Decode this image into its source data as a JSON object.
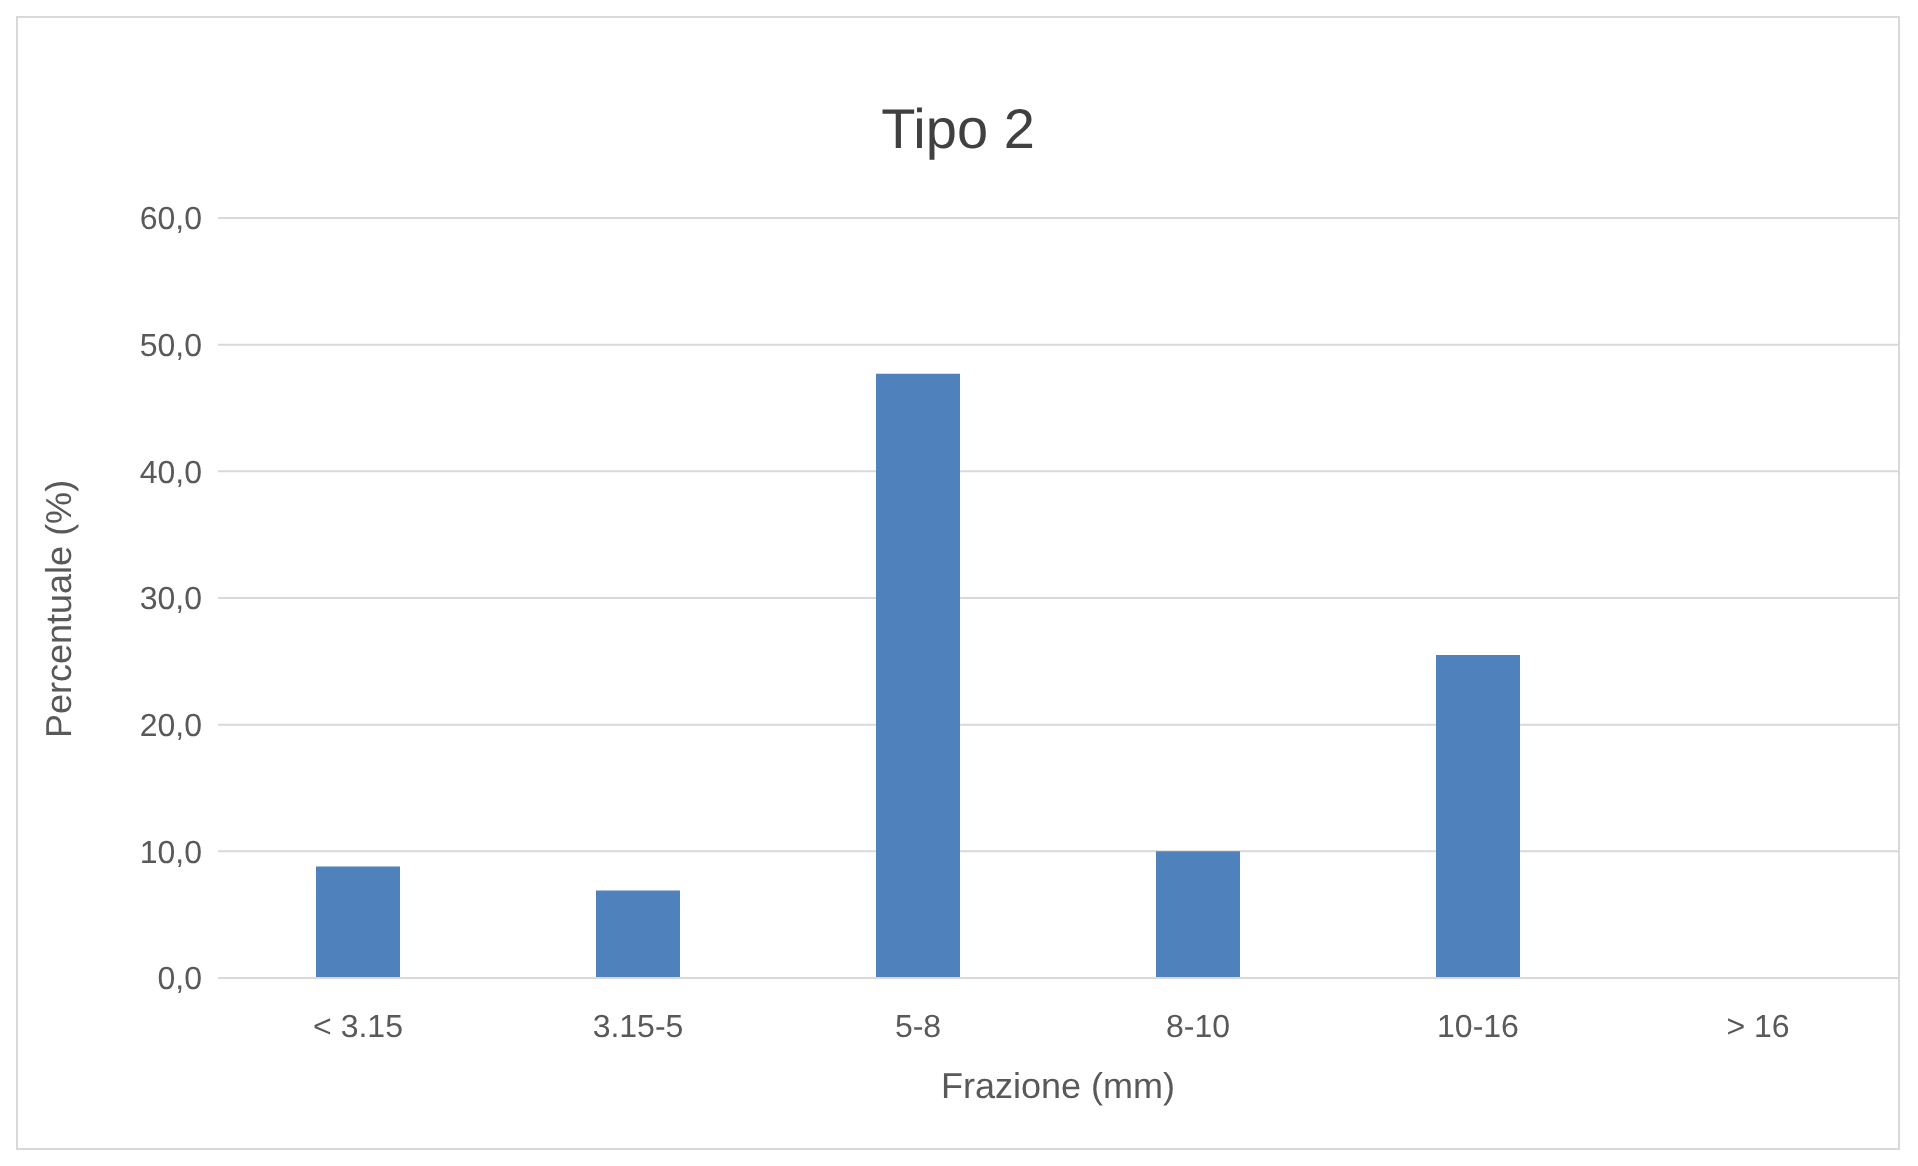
{
  "chart_data": {
    "type": "bar",
    "title": "Tipo 2",
    "xlabel": "Frazione (mm)",
    "ylabel": "Percentuale (%)",
    "categories": [
      "< 3.15",
      "3.15-5",
      "5-8",
      "8-10",
      "10-16",
      "> 16"
    ],
    "values": [
      8.8,
      6.9,
      47.7,
      10.0,
      25.5,
      0
    ],
    "color": "#4f81bd",
    "ylim": [
      0,
      60
    ],
    "yticks": [
      {
        "value": 0,
        "label": "0,0"
      },
      {
        "value": 10,
        "label": "10,0"
      },
      {
        "value": 20,
        "label": "20,0"
      },
      {
        "value": 30,
        "label": "30,0"
      },
      {
        "value": 40,
        "label": "40,0"
      },
      {
        "value": 50,
        "label": "50,0"
      },
      {
        "value": 60,
        "label": "60,0"
      }
    ],
    "grid": "y",
    "legend": false
  }
}
